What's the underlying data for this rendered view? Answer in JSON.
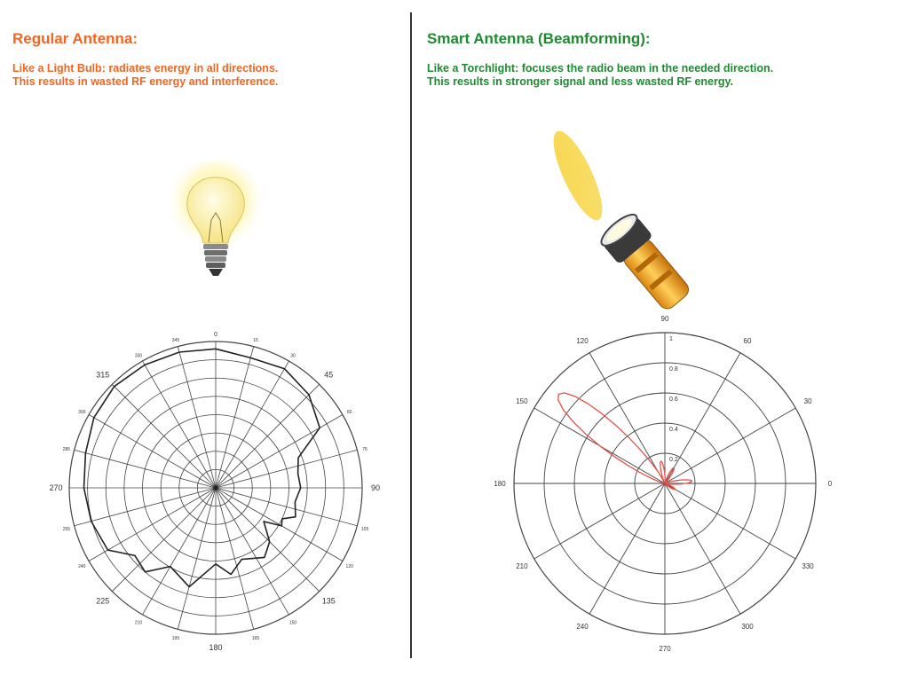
{
  "left": {
    "heading": "Regular Antenna:",
    "desc_line1": "Like a Light Bulb: radiates energy in all directions.",
    "desc_line2": "This results in wasted RF energy and interference.",
    "plot": {
      "degree_labels": [
        {
          "text": "0",
          "deg": 0,
          "size": "small"
        },
        {
          "text": "15",
          "deg": 15,
          "size": "tiny"
        },
        {
          "text": "30",
          "deg": 30,
          "size": "tiny"
        },
        {
          "text": "45",
          "deg": 45,
          "size": "big"
        },
        {
          "text": "60",
          "deg": 60,
          "size": "tiny"
        },
        {
          "text": "75",
          "deg": 75,
          "size": "tiny"
        },
        {
          "text": "90",
          "deg": 90,
          "size": "big"
        },
        {
          "text": "105",
          "deg": 105,
          "size": "tiny"
        },
        {
          "text": "120",
          "deg": 120,
          "size": "tiny"
        },
        {
          "text": "135",
          "deg": 135,
          "size": "big"
        },
        {
          "text": "150",
          "deg": 150,
          "size": "tiny"
        },
        {
          "text": "165",
          "deg": 165,
          "size": "tiny"
        },
        {
          "text": "180",
          "deg": 180,
          "size": "big"
        },
        {
          "text": "195",
          "deg": 195,
          "size": "tiny"
        },
        {
          "text": "210",
          "deg": 210,
          "size": "tiny"
        },
        {
          "text": "225",
          "deg": 225,
          "size": "big"
        },
        {
          "text": "240",
          "deg": 240,
          "size": "tiny"
        },
        {
          "text": "255",
          "deg": 255,
          "size": "tiny"
        },
        {
          "text": "270",
          "deg": 270,
          "size": "big"
        },
        {
          "text": "285",
          "deg": 285,
          "size": "tiny"
        },
        {
          "text": "300",
          "deg": 300,
          "size": "tiny"
        },
        {
          "text": "315",
          "deg": 315,
          "size": "big"
        },
        {
          "text": "330",
          "deg": 330,
          "size": "tiny"
        },
        {
          "text": "345",
          "deg": 345,
          "size": "tiny"
        }
      ],
      "pattern_color": "#222222",
      "pattern": [
        [
          0,
          0.95
        ],
        [
          15,
          0.92
        ],
        [
          30,
          0.94
        ],
        [
          45,
          0.9
        ],
        [
          60,
          0.82
        ],
        [
          70,
          0.6
        ],
        [
          80,
          0.57
        ],
        [
          90,
          0.58
        ],
        [
          100,
          0.55
        ],
        [
          110,
          0.58
        ],
        [
          115,
          0.5
        ],
        [
          120,
          0.52
        ],
        [
          125,
          0.4
        ],
        [
          135,
          0.52
        ],
        [
          145,
          0.58
        ],
        [
          160,
          0.52
        ],
        [
          170,
          0.6
        ],
        [
          180,
          0.52
        ],
        [
          195,
          0.7
        ],
        [
          210,
          0.62
        ],
        [
          220,
          0.75
        ],
        [
          230,
          0.72
        ],
        [
          240,
          0.85
        ],
        [
          255,
          0.88
        ],
        [
          270,
          0.9
        ],
        [
          285,
          0.92
        ],
        [
          300,
          0.96
        ],
        [
          315,
          0.98
        ],
        [
          330,
          0.97
        ],
        [
          345,
          0.96
        ]
      ]
    }
  },
  "right": {
    "heading": "Smart Antenna (Beamforming):",
    "desc_line1": "Like a Torchlight: focuses the radio beam in the needed direction.",
    "desc_line2": "This results in stronger signal and less wasted RF energy.",
    "plot": {
      "angle_labels": [
        "0",
        "30",
        "60",
        "90",
        "120",
        "150",
        "180",
        "210",
        "240",
        "270",
        "300",
        "330"
      ],
      "radial_labels": [
        "0.2",
        "0.4",
        "0.6",
        "0.8",
        "1"
      ],
      "pattern_color": "#e8504a",
      "beam_direction_deg": 140,
      "beam_peak": 0.92,
      "side_lobes": [
        [
          5,
          0.18
        ],
        [
          60,
          0.12
        ],
        [
          100,
          0.15
        ],
        [
          330,
          0.08
        ]
      ]
    }
  },
  "colors": {
    "left_text": "#f26522",
    "right_text": "#1f8a32",
    "grid": "#444444"
  },
  "icons": {
    "left": "light-bulb-icon",
    "right": "flashlight-icon"
  }
}
